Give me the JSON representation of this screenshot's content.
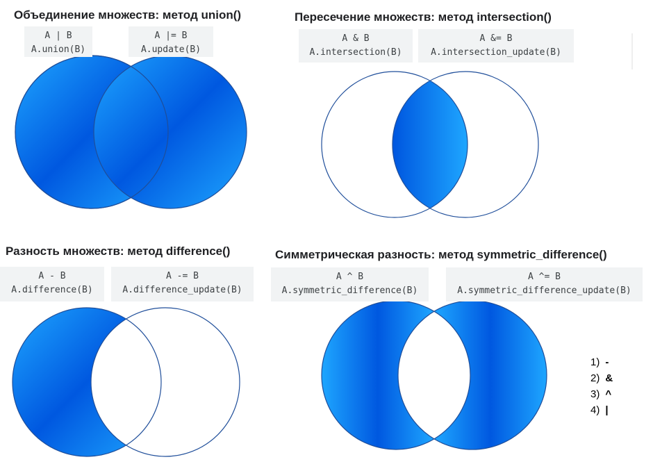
{
  "panels": [
    {
      "title": "Объединение множеств: метод union()",
      "boxes": [
        [
          "A | B",
          "A.union(B)"
        ],
        [
          "A |= B",
          "A.update(B)"
        ]
      ]
    },
    {
      "title": "Пересечение множеств: метод intersection()",
      "boxes": [
        [
          "A & B",
          "A.intersection(B)"
        ],
        [
          "A &= B",
          "A.intersection_update(B)"
        ]
      ]
    },
    {
      "title": "Разность множеств: метод difference()",
      "boxes": [
        [
          "A - B",
          "A.difference(B)"
        ],
        [
          "A -= B",
          "A.difference_update(B)"
        ]
      ]
    },
    {
      "title": "Симметрическая разность: метод symmetric_difference()",
      "boxes": [
        [
          "A ^ B",
          "A.symmetric_difference(B)"
        ],
        [
          "A ^= B",
          "A.symmetric_difference_update(B)"
        ]
      ]
    }
  ],
  "options": [
    {
      "number": "1)",
      "symbol": "-"
    },
    {
      "number": "2)",
      "symbol": "&"
    },
    {
      "number": "3)",
      "symbol": "^"
    },
    {
      "number": "4)",
      "symbol": "|"
    }
  ]
}
